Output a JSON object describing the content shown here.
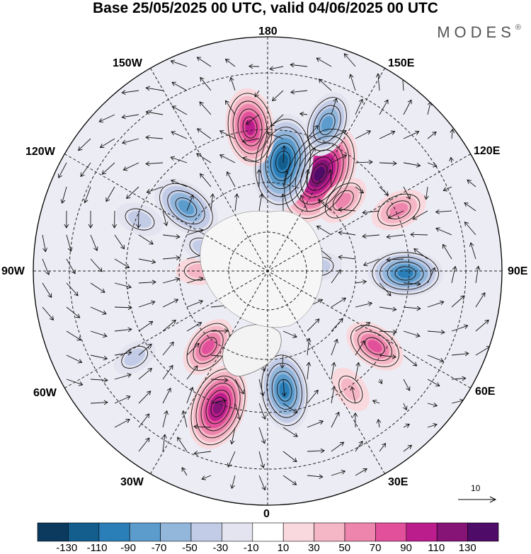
{
  "title": "Base 25/05/2025 00 UTC, valid 04/06/2025 00 UTC",
  "brand": "MODES",
  "brand_mark": "®",
  "lon_labels": {
    "l180": "180",
    "l150E": "150E",
    "l120E": "120E",
    "l90E": "90E",
    "l60E": "60E",
    "l30E": "30E",
    "l0": "0",
    "l30W": "30W",
    "l60W": "60W",
    "l90W": "90W",
    "l120W": "120W",
    "l150W": "150W"
  },
  "vector_scale": {
    "value": "10"
  },
  "colorbar": {
    "colors": [
      "#0b3a5e",
      "#145e8e",
      "#2b7fb8",
      "#5b9ccd",
      "#93b6db",
      "#c3cce6",
      "#e4e4f0",
      "#ffffff",
      "#f9d9de",
      "#f5b6c6",
      "#ee85ad",
      "#e2509b",
      "#bb1e8c",
      "#861477",
      "#4e0b67"
    ],
    "ticks": [
      "-130",
      "-110",
      "-90",
      "-70",
      "-50",
      "-30",
      "-10",
      "10",
      "30",
      "50",
      "70",
      "90",
      "110",
      "130"
    ]
  },
  "anomalies": [
    {
      "lon": 152,
      "lat": 58,
      "value": 125
    },
    {
      "lon": 172,
      "lat": 58,
      "value": -110
    },
    {
      "lon": -173,
      "lat": 48,
      "value": 80
    },
    {
      "lon": 158,
      "lat": 44,
      "value": -60
    },
    {
      "lon": 133,
      "lat": 60,
      "value": 40
    },
    {
      "lon": 115,
      "lat": 48,
      "value": 45
    },
    {
      "lon": 89,
      "lat": 50,
      "value": -75
    },
    {
      "lon": 55,
      "lat": 52,
      "value": 55
    },
    {
      "lon": 35,
      "lat": 48,
      "value": 30
    },
    {
      "lon": 8,
      "lat": 55,
      "value": -85
    },
    {
      "lon": -20,
      "lat": 48,
      "value": 95
    },
    {
      "lon": -38,
      "lat": 62,
      "value": 55
    },
    {
      "lon": -57,
      "lat": 44,
      "value": -25
    },
    {
      "lon": -90,
      "lat": 70,
      "value": 25
    },
    {
      "lon": -128,
      "lat": 60,
      "value": -70
    },
    {
      "lon": -112,
      "lat": 50,
      "value": -30
    },
    {
      "lon": -110,
      "lat": 70,
      "value": -20
    },
    {
      "lon": 95,
      "lat": 75,
      "value": -25
    }
  ]
}
